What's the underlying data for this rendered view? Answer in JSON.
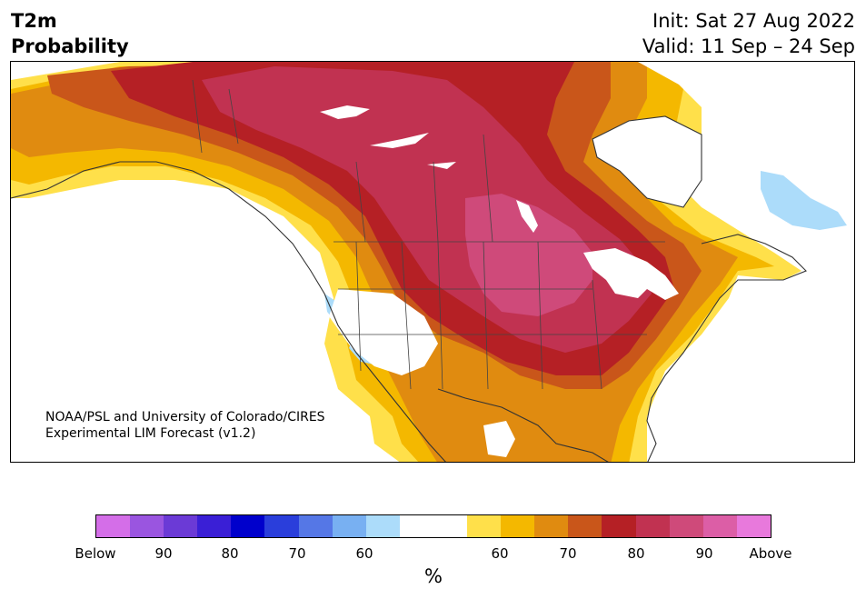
{
  "header": {
    "variable": "T2m",
    "product": "Probability",
    "init": "Init: Sat 27 Aug 2022",
    "valid": "Valid: 11 Sep – 24 Sep"
  },
  "map": {
    "region": "North America",
    "credit_line1": "NOAA/PSL and University of Colorado/CIRES",
    "credit_line2": "Experimental LIM Forecast (v1.2)"
  },
  "legend": {
    "unit": "%",
    "tick_labels": [
      "Below",
      "90",
      "80",
      "70",
      "60",
      "60",
      "70",
      "80",
      "90",
      "Above"
    ],
    "colors": [
      "#d46ee8",
      "#9a55e0",
      "#6b3ad6",
      "#3a1fd6",
      "#0000cc",
      "#2a3edb",
      "#5577e6",
      "#78b0f2",
      "#acdcfa",
      "#ffffff",
      "#ffffff",
      "#ffe04a",
      "#f4b800",
      "#e08b10",
      "#c9561a",
      "#b52025",
      "#c13251",
      "#cf4a7a",
      "#dc5ea6",
      "#e879dc"
    ]
  }
}
